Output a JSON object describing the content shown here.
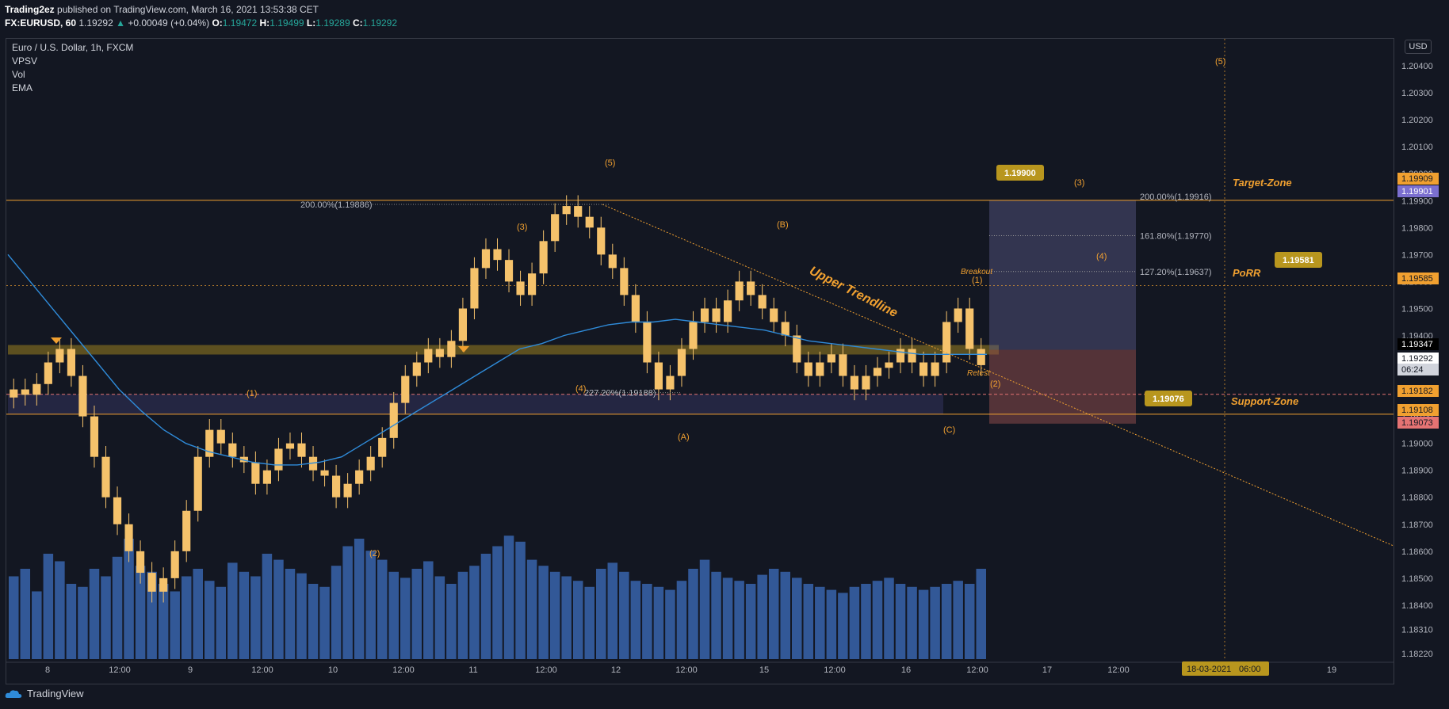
{
  "header": {
    "publisher": "Trading2ez",
    "published_text": "published on TradingView.com, March 16, 2021 13:53:38 CET",
    "symbol": "FX:EURUSD, 60",
    "last": "1.19292",
    "change": "+0.00049 (+0.04%)",
    "o_label": "O:",
    "o": "1.19472",
    "h_label": "H:",
    "h": "1.19499",
    "l_label": "L:",
    "l": "1.19289",
    "c_label": "C:",
    "c": "1.19292"
  },
  "legend": {
    "title": "Euro / U.S. Dollar, 1h, FXCM",
    "items": [
      "VPSV",
      "Vol",
      "EMA"
    ]
  },
  "currency": "USD",
  "footer": {
    "brand": "TradingView"
  },
  "colors": {
    "background": "#131722",
    "up_candle": "#f5c26b",
    "ema": "#2f8bd9",
    "volume": "#3d6fbf",
    "orange": "#f0a030",
    "target_zone": "#5a5a8a",
    "stop_zone": "#8b4a4a",
    "support_band": "#3a3a6a",
    "resistance_band": "#b8961e"
  },
  "annotations": {
    "target_zone": "Target-Zone",
    "porr": "PoRR",
    "support_zone": "Support-Zone",
    "upper_trendline": "Upper Trendline",
    "breakout": "Breakout",
    "retest": "Retest",
    "callout_top": "1.19900",
    "callout_porr": "1.19581",
    "callout_support": "1.19076",
    "fib_200_left": "200.00%(1.19886)",
    "fib_227_left": "227.20%(1.19188)",
    "fib_200_right": "200.00%(1.19916)",
    "fib_1618_right": "161.80%(1.19770)",
    "fib_1272_right": "127.20%(1.19637)",
    "wave_labels": [
      "(1)",
      "(2)",
      "(3)",
      "(4)",
      "(5)",
      "(A)",
      "(B)",
      "(C)",
      "(1)",
      "(2)",
      "(3)",
      "(4)",
      "(5)"
    ]
  },
  "price_badges": [
    {
      "price": "1.19909",
      "bg": "#f0a030",
      "fg": "#131722"
    },
    {
      "price": "1.19901",
      "bg": "#7b6fd0",
      "fg": "#ffffff"
    },
    {
      "price": "1.19585",
      "bg": "#f0a030",
      "fg": "#131722"
    },
    {
      "price": "1.19347",
      "bg": "#000000",
      "fg": "#ffffff"
    },
    {
      "price": "1.19292",
      "bg": "#ffffff",
      "fg": "#131722"
    },
    {
      "price": "06:24",
      "bg": "#d1d4dc",
      "fg": "#131722"
    },
    {
      "price": "1.19182",
      "bg": "#f0a030",
      "fg": "#131722"
    },
    {
      "price": "1.19108",
      "bg": "#f0a030",
      "fg": "#131722"
    },
    {
      "price": "1.19073",
      "bg": "#e57373",
      "fg": "#131722"
    }
  ],
  "x_axis": {
    "labels": [
      "8",
      "12:00",
      "9",
      "12:00",
      "10",
      "12:00",
      "11",
      "12:00",
      "12",
      "12:00",
      "15",
      "12:00",
      "16",
      "12:00",
      "17",
      "12:00",
      "19"
    ],
    "cursor_date": "18-03-2021",
    "cursor_time": "06:00"
  },
  "chart_data": {
    "type": "candlestick",
    "title": "Euro / U.S. Dollar, 1h, FXCM",
    "ylim": [
      1.182,
      1.205
    ],
    "y_ticks": [
      "1.18220",
      "1.18310",
      "1.18400",
      "1.18500",
      "1.18600",
      "1.18700",
      "1.18800",
      "1.18900",
      "1.19000",
      "1.19100",
      "1.19200",
      "1.19300",
      "1.19400",
      "1.19500",
      "1.19600",
      "1.19700",
      "1.19800",
      "1.19900",
      "1.20000",
      "1.20100",
      "1.20200",
      "1.20300",
      "1.20400"
    ],
    "levels": {
      "target_top": 1.19909,
      "target_line": 1.19901,
      "porr": 1.19585,
      "resistance": 1.19347,
      "last": 1.19292,
      "support_top": 1.19182,
      "support_bottom": 1.19108,
      "stop": 1.19073
    },
    "closes": [
      1.192,
      1.1918,
      1.1922,
      1.193,
      1.1935,
      1.1925,
      1.191,
      1.1895,
      1.188,
      1.187,
      1.186,
      1.1852,
      1.1845,
      1.185,
      1.186,
      1.1875,
      1.1895,
      1.1905,
      1.19,
      1.1895,
      1.1893,
      1.1885,
      1.189,
      1.1898,
      1.19,
      1.1895,
      1.189,
      1.1888,
      1.188,
      1.1885,
      1.189,
      1.1895,
      1.1902,
      1.1915,
      1.1925,
      1.193,
      1.1935,
      1.1932,
      1.1938,
      1.195,
      1.1965,
      1.1972,
      1.1968,
      1.196,
      1.1955,
      1.1963,
      1.1975,
      1.1985,
      1.1988,
      1.1984,
      1.198,
      1.197,
      1.1965,
      1.1955,
      1.1945,
      1.193,
      1.192,
      1.1925,
      1.1935,
      1.1945,
      1.195,
      1.1945,
      1.1953,
      1.196,
      1.1955,
      1.195,
      1.1945,
      1.194,
      1.193,
      1.1925,
      1.193,
      1.1933,
      1.1925,
      1.192,
      1.1925,
      1.1928,
      1.193,
      1.1935,
      1.193,
      1.1925,
      1.193,
      1.1945,
      1.195,
      1.1935,
      1.1929
    ],
    "volumes": [
      55,
      60,
      45,
      70,
      65,
      50,
      48,
      60,
      55,
      68,
      80,
      62,
      58,
      50,
      45,
      55,
      60,
      52,
      48,
      64,
      58,
      55,
      70,
      66,
      60,
      57,
      50,
      48,
      62,
      75,
      80,
      72,
      66,
      58,
      54,
      60,
      65,
      55,
      50,
      58,
      62,
      70,
      75,
      82,
      78,
      66,
      62,
      58,
      55,
      52,
      48,
      60,
      64,
      58,
      52,
      50,
      48,
      46,
      52,
      60,
      66,
      58,
      54,
      52,
      50,
      56,
      60,
      58,
      54,
      50,
      48,
      46,
      44,
      48,
      50,
      52,
      54,
      50,
      48,
      46,
      48,
      50,
      52,
      50,
      60
    ],
    "ema": [
      1.197,
      1.196,
      1.195,
      1.194,
      1.193,
      1.192,
      1.1912,
      1.1905,
      1.19,
      1.1897,
      1.1895,
      1.1893,
      1.1892,
      1.1892,
      1.1893,
      1.1895,
      1.19,
      1.1905,
      1.191,
      1.1915,
      1.192,
      1.1925,
      1.193,
      1.1935,
      1.1937,
      1.194,
      1.1942,
      1.1944,
      1.1945,
      1.1945,
      1.1946,
      1.1945,
      1.1944,
      1.1943,
      1.1942,
      1.194,
      1.1938,
      1.1937,
      1.1936,
      1.1935,
      1.1934,
      1.1933,
      1.1933,
      1.1933,
      1.1933
    ]
  }
}
